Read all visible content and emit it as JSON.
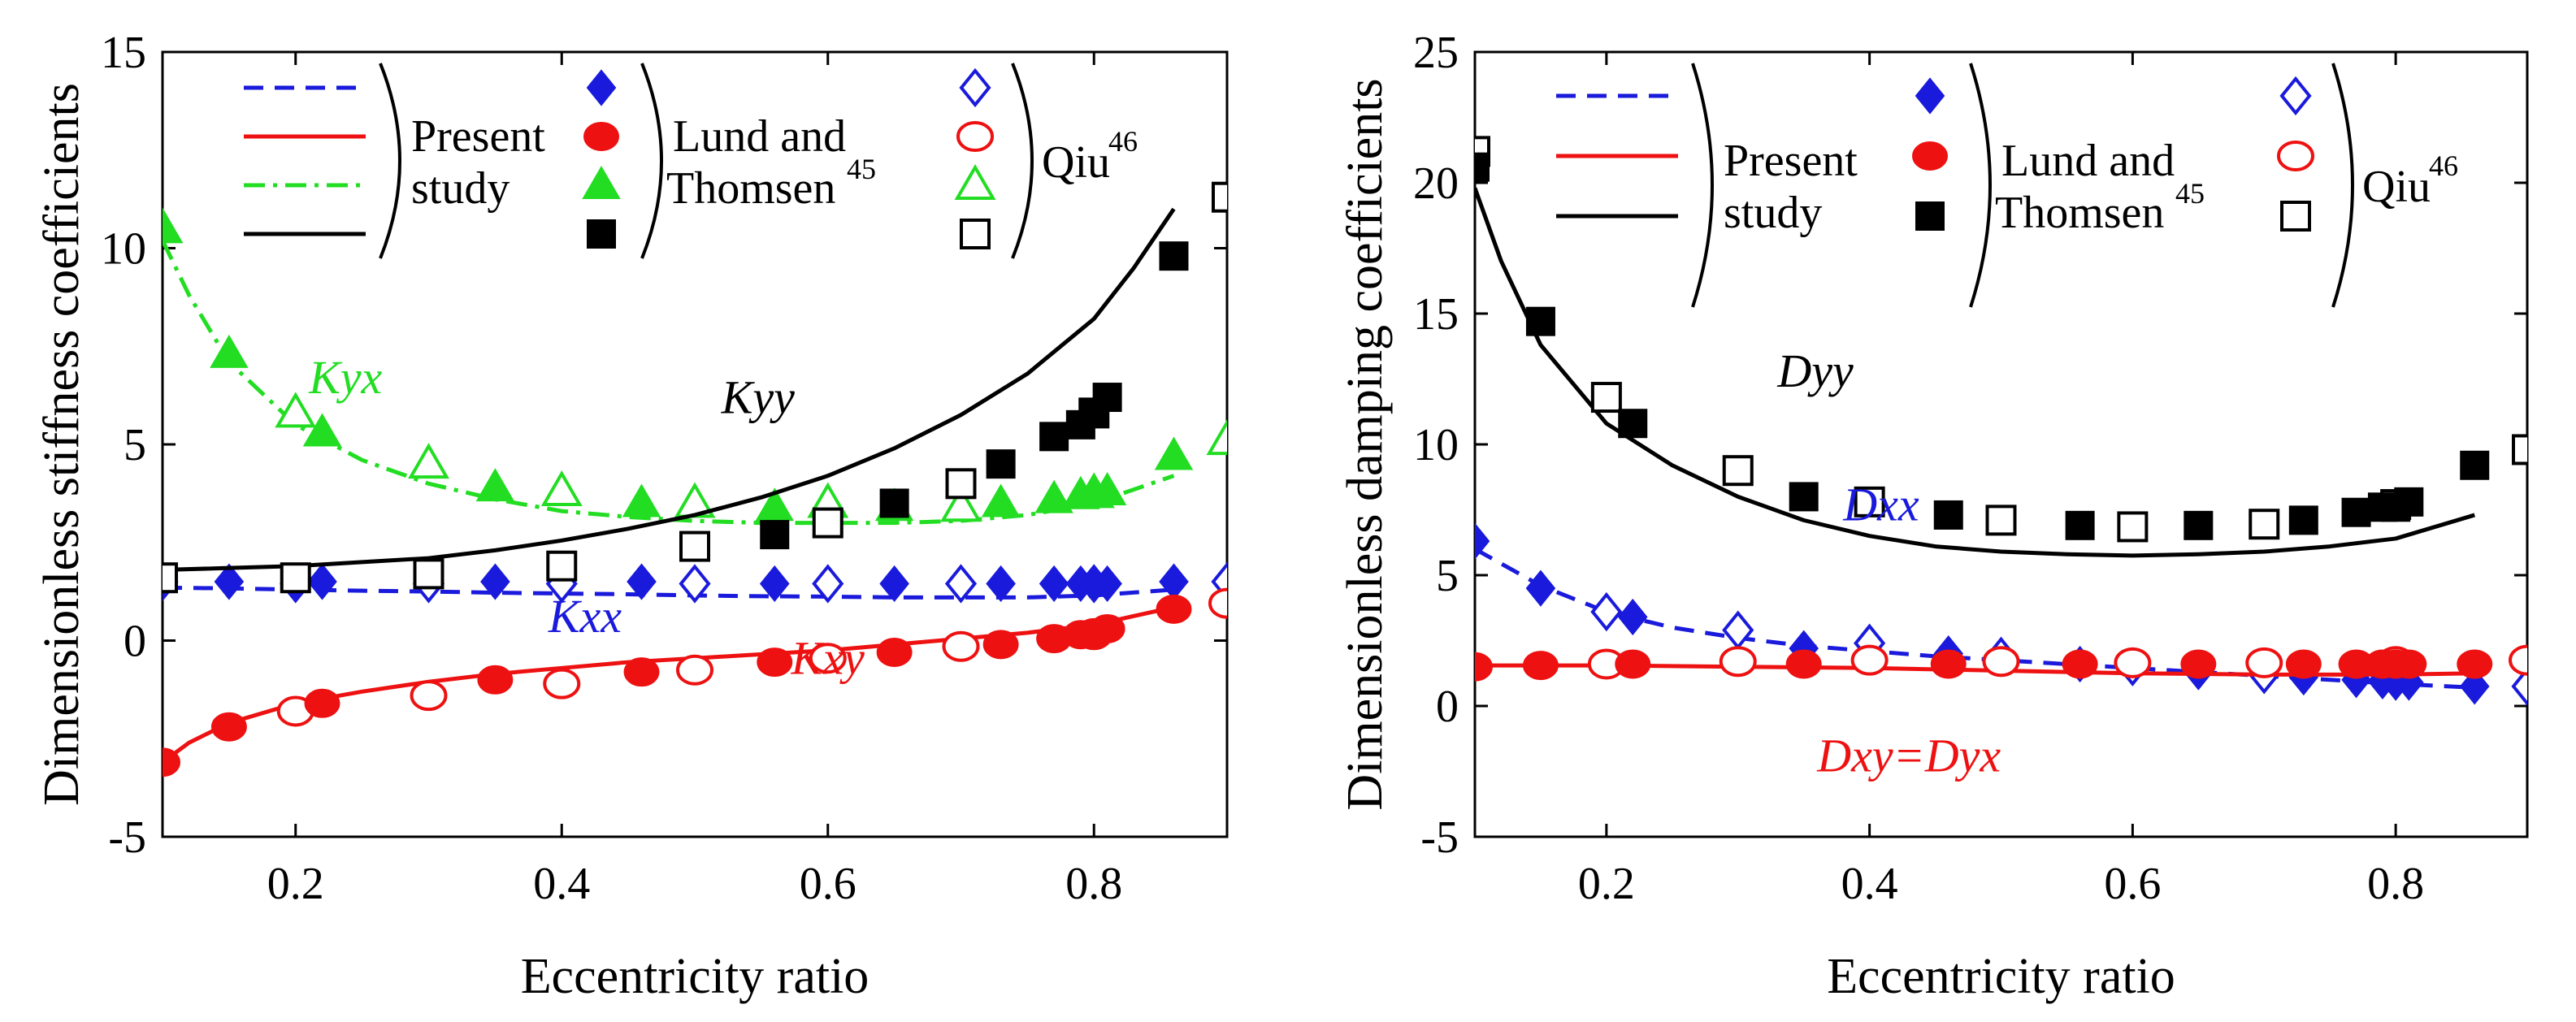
{
  "chart_data": [
    {
      "type": "line+scatter",
      "ylabel": "Dimensionless stiffness coefficients",
      "xlabel": "Eccentricity ratio",
      "xlim": [
        0.1,
        0.9
      ],
      "ylim": [
        -5,
        15
      ],
      "xticks": [
        0.2,
        0.4,
        0.6,
        0.8
      ],
      "xtick_labels": [
        "0.2",
        "0.4",
        "0.6",
        "0.8"
      ],
      "yticks": [
        -5,
        0,
        5,
        10,
        15
      ],
      "ytick_labels": [
        "-5",
        "0",
        "5",
        "10",
        "15"
      ],
      "grid": false,
      "legend": {
        "position": "top-left",
        "group_present": [
          "Present",
          "study"
        ],
        "group_lund": [
          "Lund and",
          "Thomsen"
        ],
        "lund_superscript": "45",
        "group_qiu": "Qiu",
        "qiu_superscript": "46"
      },
      "series": [
        {
          "name": "Kxx",
          "label": "Kxx",
          "color": "#1a1adc",
          "style": "dashed",
          "present": {
            "x": [
              0.1,
              0.15,
              0.2,
              0.25,
              0.3,
              0.35,
              0.4,
              0.45,
              0.5,
              0.55,
              0.6,
              0.65,
              0.7,
              0.75,
              0.8,
              0.86
            ],
            "y": [
              1.35,
              1.33,
              1.3,
              1.27,
              1.25,
              1.22,
              1.2,
              1.18,
              1.15,
              1.13,
              1.12,
              1.1,
              1.1,
              1.1,
              1.15,
              1.3
            ]
          },
          "lund": {
            "x": [
              0.1,
              0.15,
              0.2,
              0.22,
              0.35,
              0.46,
              0.56,
              0.65,
              0.73,
              0.77,
              0.79,
              0.8,
              0.81,
              0.86
            ],
            "y": [
              1.5,
              1.5,
              1.5,
              1.5,
              1.5,
              1.5,
              1.45,
              1.45,
              1.45,
              1.45,
              1.45,
              1.45,
              1.45,
              1.5
            ]
          },
          "qiu": {
            "x": [
              0.1,
              0.2,
              0.3,
              0.4,
              0.5,
              0.6,
              0.7,
              0.8,
              0.9
            ],
            "y": [
              1.5,
              1.45,
              1.45,
              1.45,
              1.45,
              1.45,
              1.45,
              1.45,
              1.5
            ]
          }
        },
        {
          "name": "Kxy",
          "label": "Kxy",
          "color": "#ee1111",
          "style": "solid",
          "present": {
            "x": [
              0.1,
              0.12,
              0.15,
              0.2,
              0.25,
              0.3,
              0.35,
              0.4,
              0.45,
              0.5,
              0.55,
              0.6,
              0.65,
              0.7,
              0.75,
              0.8,
              0.86
            ],
            "y": [
              -3.1,
              -2.6,
              -2.1,
              -1.6,
              -1.3,
              -1.05,
              -0.85,
              -0.7,
              -0.55,
              -0.45,
              -0.35,
              -0.25,
              -0.1,
              0.05,
              0.2,
              0.4,
              0.85
            ]
          },
          "lund": {
            "x": [
              0.1,
              0.15,
              0.22,
              0.35,
              0.46,
              0.56,
              0.65,
              0.73,
              0.77,
              0.79,
              0.8,
              0.81,
              0.86
            ],
            "y": [
              -3.1,
              -2.2,
              -1.6,
              -1.0,
              -0.8,
              -0.55,
              -0.3,
              -0.1,
              0.05,
              0.15,
              0.2,
              0.3,
              0.8
            ]
          },
          "qiu": {
            "x": [
              0.2,
              0.3,
              0.4,
              0.5,
              0.6,
              0.7,
              0.8,
              0.9
            ],
            "y": [
              -1.8,
              -1.4,
              -1.1,
              -0.75,
              -0.45,
              -0.15,
              0.15,
              0.95
            ]
          }
        },
        {
          "name": "Kyx",
          "label": "Kyx",
          "color": "#22dd22",
          "style": "dashdot",
          "present": {
            "x": [
              0.1,
              0.12,
              0.15,
              0.2,
              0.25,
              0.3,
              0.35,
              0.4,
              0.45,
              0.5,
              0.55,
              0.6,
              0.65,
              0.7,
              0.75,
              0.8,
              0.86
            ],
            "y": [
              10.2,
              8.8,
              7.1,
              5.5,
              4.6,
              4.0,
              3.6,
              3.3,
              3.15,
              3.05,
              3.0,
              3.0,
              3.0,
              3.05,
              3.2,
              3.5,
              4.2
            ]
          },
          "lund": {
            "x": [
              0.1,
              0.15,
              0.22,
              0.35,
              0.46,
              0.56,
              0.65,
              0.73,
              0.77,
              0.79,
              0.8,
              0.81,
              0.86
            ],
            "y": [
              10.5,
              7.3,
              5.3,
              3.9,
              3.5,
              3.4,
              3.4,
              3.5,
              3.6,
              3.7,
              3.75,
              3.8,
              4.7
            ]
          },
          "qiu": {
            "x": [
              0.1,
              0.2,
              0.3,
              0.4,
              0.5,
              0.6,
              0.7,
              0.8,
              0.9
            ],
            "y": [
              10.5,
              5.8,
              4.5,
              3.8,
              3.5,
              3.5,
              3.4,
              3.75,
              5.1
            ]
          }
        },
        {
          "name": "Kyy",
          "label": "Kyy",
          "color": "#000000",
          "style": "solid",
          "present": {
            "x": [
              0.1,
              0.15,
              0.2,
              0.25,
              0.3,
              0.35,
              0.4,
              0.45,
              0.5,
              0.55,
              0.6,
              0.65,
              0.7,
              0.75,
              0.8,
              0.83,
              0.86
            ],
            "y": [
              1.8,
              1.85,
              1.9,
              2.0,
              2.1,
              2.3,
              2.55,
              2.85,
              3.2,
              3.65,
              4.2,
              4.9,
              5.75,
              6.8,
              8.2,
              9.5,
              11.0
            ]
          },
          "lund": {
            "x": [
              0.56,
              0.65,
              0.73,
              0.77,
              0.79,
              0.8,
              0.81,
              0.86
            ],
            "y": [
              2.7,
              3.5,
              4.5,
              5.2,
              5.5,
              5.8,
              6.2,
              9.8
            ]
          },
          "qiu": {
            "x": [
              0.1,
              0.2,
              0.3,
              0.4,
              0.5,
              0.6,
              0.7,
              0.8,
              0.9
            ],
            "y": [
              1.6,
              1.6,
              1.7,
              1.9,
              2.4,
              3.0,
              4.0,
              5.8,
              11.3
            ]
          }
        }
      ]
    },
    {
      "type": "line+scatter",
      "ylabel": "Dimensionless damping coefficients",
      "xlabel": "Eccentricity ratio",
      "xlim": [
        0.1,
        0.9
      ],
      "ylim": [
        -5,
        25
      ],
      "xticks": [
        0.2,
        0.4,
        0.6,
        0.8
      ],
      "xtick_labels": [
        "0.2",
        "0.4",
        "0.6",
        "0.8"
      ],
      "yticks": [
        -5,
        0,
        5,
        10,
        15,
        20,
        25
      ],
      "ytick_labels": [
        "-5",
        "0",
        "5",
        "10",
        "15",
        "20",
        "25"
      ],
      "grid": false,
      "legend": {
        "position": "top-left",
        "group_present": [
          "Present",
          "study"
        ],
        "group_lund": [
          "Lund and",
          "Thomsen"
        ],
        "lund_superscript": "45",
        "group_qiu": "Qiu",
        "qiu_superscript": "46"
      },
      "series": [
        {
          "name": "Dxx",
          "label": "Dxx",
          "color": "#1a1adc",
          "style": "dashed",
          "present": {
            "x": [
              0.1,
              0.15,
              0.2,
              0.25,
              0.3,
              0.35,
              0.4,
              0.45,
              0.5,
              0.55,
              0.6,
              0.65,
              0.7,
              0.75,
              0.8,
              0.86
            ],
            "y": [
              6.0,
              4.6,
              3.6,
              3.0,
              2.6,
              2.3,
              2.1,
              1.9,
              1.75,
              1.6,
              1.45,
              1.3,
              1.15,
              1.0,
              0.85,
              0.7
            ]
          },
          "lund": {
            "x": [
              0.1,
              0.15,
              0.22,
              0.35,
              0.46,
              0.56,
              0.65,
              0.73,
              0.77,
              0.79,
              0.8,
              0.81,
              0.86
            ],
            "y": [
              6.3,
              4.5,
              3.4,
              2.2,
              2.0,
              1.6,
              1.3,
              1.1,
              1.0,
              0.95,
              0.9,
              0.9,
              0.75
            ]
          },
          "qiu": {
            "x": [
              0.2,
              0.3,
              0.4,
              0.5,
              0.6,
              0.7,
              0.8,
              0.9
            ],
            "y": [
              3.6,
              2.9,
              2.4,
              1.9,
              1.5,
              1.2,
              0.95,
              0.75
            ]
          }
        },
        {
          "name": "Dxy=Dyx",
          "label": "Dxy=Dyx",
          "color": "#ee1111",
          "style": "solid",
          "present": {
            "x": [
              0.1,
              0.2,
              0.3,
              0.4,
              0.5,
              0.6,
              0.7,
              0.8,
              0.86
            ],
            "y": [
              1.55,
              1.55,
              1.5,
              1.45,
              1.35,
              1.25,
              1.2,
              1.2,
              1.25
            ]
          },
          "lund": {
            "x": [
              0.1,
              0.15,
              0.22,
              0.35,
              0.46,
              0.56,
              0.65,
              0.73,
              0.77,
              0.79,
              0.8,
              0.81,
              0.86
            ],
            "y": [
              1.5,
              1.55,
              1.6,
              1.6,
              1.6,
              1.6,
              1.6,
              1.6,
              1.6,
              1.6,
              1.6,
              1.6,
              1.6
            ]
          },
          "qiu": {
            "x": [
              0.2,
              0.3,
              0.4,
              0.5,
              0.6,
              0.7,
              0.8,
              0.9
            ],
            "y": [
              1.6,
              1.7,
              1.75,
              1.7,
              1.65,
              1.65,
              1.7,
              1.75
            ]
          }
        },
        {
          "name": "Dyy",
          "label": "Dyy",
          "color": "#000000",
          "style": "solid",
          "present": {
            "x": [
              0.1,
              0.12,
              0.15,
              0.2,
              0.25,
              0.3,
              0.35,
              0.4,
              0.45,
              0.5,
              0.55,
              0.6,
              0.65,
              0.7,
              0.75,
              0.8,
              0.86
            ],
            "y": [
              19.8,
              17.0,
              13.8,
              10.8,
              9.2,
              8.0,
              7.1,
              6.5,
              6.1,
              5.9,
              5.8,
              5.75,
              5.8,
              5.9,
              6.1,
              6.4,
              7.3
            ]
          },
          "lund": {
            "x": [
              0.1,
              0.15,
              0.22,
              0.35,
              0.46,
              0.56,
              0.65,
              0.73,
              0.77,
              0.79,
              0.8,
              0.81,
              0.86
            ],
            "y": [
              20.6,
              14.7,
              10.8,
              8.0,
              7.3,
              6.9,
              6.9,
              7.1,
              7.4,
              7.6,
              7.6,
              7.8,
              9.2
            ]
          },
          "qiu": {
            "x": [
              0.1,
              0.2,
              0.3,
              0.4,
              0.5,
              0.6,
              0.7,
              0.8,
              0.9
            ],
            "y": [
              21.2,
              11.8,
              9.0,
              7.8,
              7.1,
              6.85,
              6.95,
              7.7,
              9.8
            ]
          }
        }
      ]
    }
  ]
}
